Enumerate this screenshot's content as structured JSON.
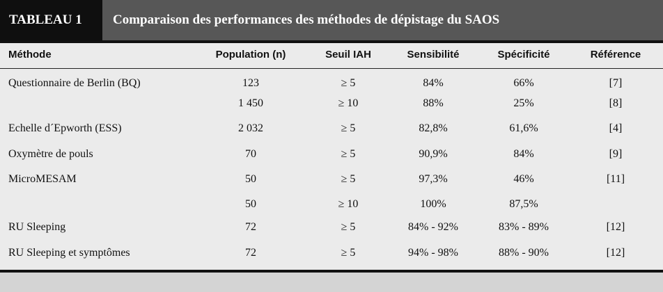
{
  "table": {
    "tag": "TABLEAU 1",
    "title": "Comparaison des performances des méthodes de dépistage du SAOS",
    "headers": [
      "Méthode",
      "Population (n)",
      "Seuil IAH",
      "Sensibilité",
      "Spécificité",
      "Référence"
    ],
    "rows": [
      [
        "Questionnaire de Berlin (BQ)",
        "123",
        "≥ 5",
        "84%",
        "66%",
        "[7]"
      ],
      [
        "",
        "1 450",
        "≥ 10",
        "88%",
        "25%",
        "[8]"
      ],
      [
        "Echelle d´Epworth (ESS)",
        "2 032",
        "≥ 5",
        "82,8%",
        "61,6%",
        "[4]"
      ],
      [
        "Oxymètre de pouls",
        "70",
        "≥ 5",
        "90,9%",
        "84%",
        "[9]"
      ],
      [
        "MicroMESAM",
        "50",
        "≥ 5",
        "97,3%",
        "46%",
        "[11]"
      ],
      [
        "",
        "50",
        "≥ 10",
        "100%",
        "87,5%",
        ""
      ],
      [
        "RU Sleeping",
        "72",
        "≥ 5",
        "84% - 92%",
        "83% - 89%",
        "[12]"
      ],
      [
        "RU Sleeping et symptômes",
        "72",
        "≥ 5",
        "94% - 98%",
        "88% - 90%",
        "[12]"
      ]
    ]
  }
}
